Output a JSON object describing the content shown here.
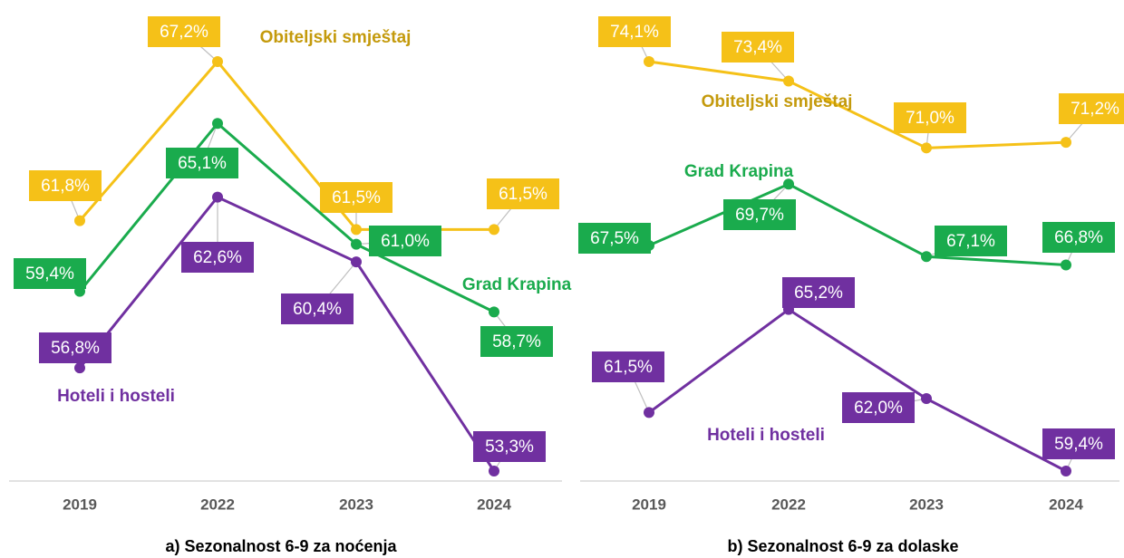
{
  "chart_data": [
    {
      "type": "line",
      "title": "a) Sezonalnost 6-9 za noćenja",
      "categories": [
        "2019",
        "2022",
        "2023",
        "2024"
      ],
      "series": [
        {
          "name": "Obiteljski smještaj",
          "color": "#f5c118",
          "values": [
            61.8,
            67.2,
            61.5,
            61.5
          ],
          "value_labels": [
            "61,8%",
            "67,2%",
            "61,5%",
            "61,5%"
          ]
        },
        {
          "name": "Grad Krapina",
          "color": "#1aab4d",
          "values": [
            59.4,
            65.1,
            61.0,
            58.7
          ],
          "value_labels": [
            "59,4%",
            "65,1%",
            "61,0%",
            "58,7%"
          ]
        },
        {
          "name": "Hoteli i hosteli",
          "color": "#7030a0",
          "values": [
            56.8,
            62.6,
            60.4,
            53.3
          ],
          "value_labels": [
            "56,8%",
            "62,6%",
            "60,4%",
            "53,3%"
          ]
        }
      ]
    },
    {
      "type": "line",
      "title": "b) Sezonalnost 6-9 za dolaske",
      "categories": [
        "2019",
        "2022",
        "2023",
        "2024"
      ],
      "series": [
        {
          "name": "Obiteljski smještaj",
          "color": "#f5c118",
          "values": [
            74.1,
            73.4,
            71.0,
            71.2
          ],
          "value_labels": [
            "74,1%",
            "73,4%",
            "71,0%",
            "71,2%"
          ]
        },
        {
          "name": "Grad Krapina",
          "color": "#1aab4d",
          "values": [
            67.5,
            69.7,
            67.1,
            66.8
          ],
          "value_labels": [
            "67,5%",
            "69,7%",
            "67,1%",
            "66,8%"
          ]
        },
        {
          "name": "Hoteli i hosteli",
          "color": "#7030a0",
          "values": [
            61.5,
            65.2,
            62.0,
            59.4
          ],
          "value_labels": [
            "61,5%",
            "65,2%",
            "62,0%",
            "59,4%"
          ]
        }
      ]
    }
  ]
}
